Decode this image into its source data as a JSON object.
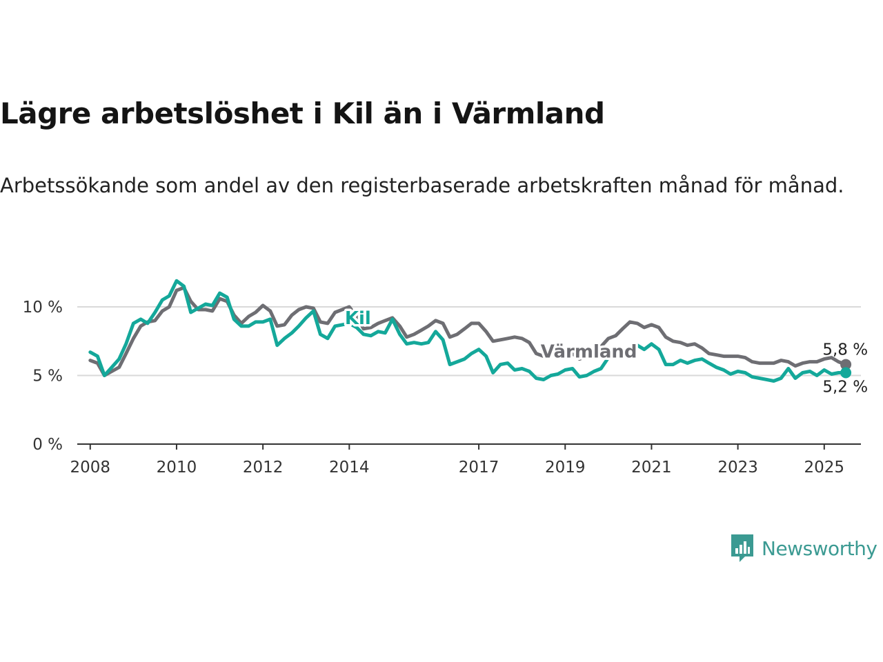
{
  "title": "Lägre arbetslöshet i Kil än i Värmland",
  "subtitle": "Arbetssökande som andel av den registerbaserade arbetskraften månad för månad.",
  "brand": "Newsworthy",
  "colors": {
    "kil": "#14a89a",
    "varmland": "#6e6e73",
    "grid": "#d9d9d9",
    "axis": "#333333",
    "brand": "#3b9a92"
  },
  "chart_data": {
    "type": "line",
    "title": "Lägre arbetslöshet i Kil än i Värmland",
    "subtitle": "Arbetssökande som andel av den registerbaserade arbetskraften månad för månad.",
    "xlabel": "",
    "ylabel": "",
    "x_range": [
      2007.7,
      2025.85
    ],
    "ylim": [
      0,
      10
    ],
    "y_ticks": [
      0,
      5,
      10
    ],
    "y_tick_labels": [
      "0 %",
      "5 %",
      "10 %"
    ],
    "x_ticks": [
      2008,
      2010,
      2012,
      2014,
      2017,
      2019,
      2021,
      2023,
      2025
    ],
    "x_tick_labels": [
      "2008",
      "2010",
      "2012",
      "2014",
      "2017",
      "2019",
      "2021",
      "2023",
      "2025"
    ],
    "grid": "horizontal",
    "series": [
      {
        "name": "Värmland",
        "end_label": "5,8 %",
        "points": [
          [
            2008.0,
            6.1
          ],
          [
            2008.17,
            5.9
          ],
          [
            2008.33,
            5.0
          ],
          [
            2008.5,
            5.3
          ],
          [
            2008.67,
            5.6
          ],
          [
            2008.83,
            6.6
          ],
          [
            2009.0,
            7.7
          ],
          [
            2009.17,
            8.6
          ],
          [
            2009.33,
            8.9
          ],
          [
            2009.5,
            9.0
          ],
          [
            2009.67,
            9.7
          ],
          [
            2009.83,
            10.0
          ],
          [
            2010.0,
            11.2
          ],
          [
            2010.17,
            11.4
          ],
          [
            2010.33,
            10.4
          ],
          [
            2010.5,
            9.8
          ],
          [
            2010.67,
            9.8
          ],
          [
            2010.83,
            9.7
          ],
          [
            2011.0,
            10.6
          ],
          [
            2011.17,
            10.4
          ],
          [
            2011.33,
            9.4
          ],
          [
            2011.5,
            8.8
          ],
          [
            2011.67,
            9.3
          ],
          [
            2011.83,
            9.6
          ],
          [
            2012.0,
            10.1
          ],
          [
            2012.17,
            9.7
          ],
          [
            2012.33,
            8.6
          ],
          [
            2012.5,
            8.7
          ],
          [
            2012.67,
            9.4
          ],
          [
            2012.83,
            9.8
          ],
          [
            2013.0,
            10.0
          ],
          [
            2013.17,
            9.9
          ],
          [
            2013.33,
            8.9
          ],
          [
            2013.5,
            8.8
          ],
          [
            2013.67,
            9.6
          ],
          [
            2014.0,
            10.0
          ],
          [
            2014.17,
            9.3
          ],
          [
            2014.33,
            8.4
          ],
          [
            2014.5,
            8.5
          ],
          [
            2014.67,
            8.8
          ],
          [
            2014.83,
            9.0
          ],
          [
            2015.0,
            9.2
          ],
          [
            2015.17,
            8.6
          ],
          [
            2015.33,
            7.8
          ],
          [
            2015.5,
            8.0
          ],
          [
            2015.67,
            8.3
          ],
          [
            2015.83,
            8.6
          ],
          [
            2016.0,
            9.0
          ],
          [
            2016.17,
            8.8
          ],
          [
            2016.33,
            7.8
          ],
          [
            2016.5,
            8.0
          ],
          [
            2016.67,
            8.4
          ],
          [
            2016.83,
            8.8
          ],
          [
            2017.0,
            8.8
          ],
          [
            2017.17,
            8.2
          ],
          [
            2017.33,
            7.5
          ],
          [
            2017.5,
            7.6
          ],
          [
            2017.67,
            7.7
          ],
          [
            2017.83,
            7.8
          ],
          [
            2018.0,
            7.7
          ],
          [
            2018.17,
            7.4
          ],
          [
            2018.33,
            6.6
          ],
          [
            2018.5,
            6.4
          ],
          [
            2018.67,
            6.5
          ],
          [
            2019.0,
            6.9
          ],
          [
            2019.17,
            6.6
          ],
          [
            2019.33,
            6.2
          ],
          [
            2019.5,
            6.4
          ],
          [
            2019.67,
            6.8
          ],
          [
            2019.83,
            7.1
          ],
          [
            2020.0,
            7.7
          ],
          [
            2020.17,
            7.9
          ],
          [
            2020.33,
            8.4
          ],
          [
            2020.5,
            8.9
          ],
          [
            2020.67,
            8.8
          ],
          [
            2020.83,
            8.5
          ],
          [
            2021.0,
            8.7
          ],
          [
            2021.17,
            8.5
          ],
          [
            2021.33,
            7.8
          ],
          [
            2021.5,
            7.5
          ],
          [
            2021.67,
            7.4
          ],
          [
            2021.83,
            7.2
          ],
          [
            2022.0,
            7.3
          ],
          [
            2022.17,
            7.0
          ],
          [
            2022.33,
            6.6
          ],
          [
            2022.5,
            6.5
          ],
          [
            2022.67,
            6.4
          ],
          [
            2022.83,
            6.4
          ],
          [
            2023.0,
            6.4
          ],
          [
            2023.17,
            6.3
          ],
          [
            2023.33,
            6.0
          ],
          [
            2023.5,
            5.9
          ],
          [
            2023.67,
            5.9
          ],
          [
            2023.83,
            5.9
          ],
          [
            2024.0,
            6.1
          ],
          [
            2024.17,
            6.0
          ],
          [
            2024.33,
            5.7
          ],
          [
            2024.5,
            5.9
          ],
          [
            2024.67,
            6.0
          ],
          [
            2024.83,
            6.0
          ],
          [
            2025.0,
            6.2
          ],
          [
            2025.17,
            6.3
          ],
          [
            2025.33,
            6.0
          ],
          [
            2025.5,
            5.8
          ]
        ]
      },
      {
        "name": "Kil",
        "end_label": "5,2 %",
        "points": [
          [
            2008.0,
            6.7
          ],
          [
            2008.17,
            6.4
          ],
          [
            2008.33,
            5.0
          ],
          [
            2008.5,
            5.6
          ],
          [
            2008.67,
            6.2
          ],
          [
            2008.83,
            7.3
          ],
          [
            2009.0,
            8.8
          ],
          [
            2009.17,
            9.1
          ],
          [
            2009.33,
            8.8
          ],
          [
            2009.5,
            9.6
          ],
          [
            2009.67,
            10.5
          ],
          [
            2009.83,
            10.8
          ],
          [
            2010.0,
            11.9
          ],
          [
            2010.17,
            11.5
          ],
          [
            2010.33,
            9.6
          ],
          [
            2010.5,
            9.9
          ],
          [
            2010.67,
            10.2
          ],
          [
            2010.83,
            10.1
          ],
          [
            2011.0,
            11.0
          ],
          [
            2011.17,
            10.7
          ],
          [
            2011.33,
            9.1
          ],
          [
            2011.5,
            8.6
          ],
          [
            2011.67,
            8.6
          ],
          [
            2011.83,
            8.9
          ],
          [
            2012.0,
            8.9
          ],
          [
            2012.17,
            9.1
          ],
          [
            2012.33,
            7.2
          ],
          [
            2012.5,
            7.7
          ],
          [
            2012.67,
            8.1
          ],
          [
            2012.83,
            8.6
          ],
          [
            2013.0,
            9.2
          ],
          [
            2013.17,
            9.7
          ],
          [
            2013.33,
            8.0
          ],
          [
            2013.5,
            7.7
          ],
          [
            2013.67,
            8.6
          ],
          [
            2014.0,
            8.8
          ],
          [
            2014.17,
            8.5
          ],
          [
            2014.33,
            8.0
          ],
          [
            2014.5,
            7.9
          ],
          [
            2014.67,
            8.2
          ],
          [
            2014.83,
            8.1
          ],
          [
            2015.0,
            9.1
          ],
          [
            2015.17,
            8.0
          ],
          [
            2015.33,
            7.3
          ],
          [
            2015.5,
            7.4
          ],
          [
            2015.67,
            7.3
          ],
          [
            2015.83,
            7.4
          ],
          [
            2016.0,
            8.2
          ],
          [
            2016.17,
            7.6
          ],
          [
            2016.33,
            5.8
          ],
          [
            2016.5,
            6.0
          ],
          [
            2016.67,
            6.2
          ],
          [
            2016.83,
            6.6
          ],
          [
            2017.0,
            6.9
          ],
          [
            2017.17,
            6.4
          ],
          [
            2017.33,
            5.2
          ],
          [
            2017.5,
            5.8
          ],
          [
            2017.67,
            5.9
          ],
          [
            2017.83,
            5.4
          ],
          [
            2018.0,
            5.5
          ],
          [
            2018.17,
            5.3
          ],
          [
            2018.33,
            4.8
          ],
          [
            2018.5,
            4.7
          ],
          [
            2018.67,
            5.0
          ],
          [
            2018.83,
            5.1
          ],
          [
            2019.0,
            5.4
          ],
          [
            2019.17,
            5.5
          ],
          [
            2019.33,
            4.9
          ],
          [
            2019.5,
            5.0
          ],
          [
            2019.67,
            5.3
          ],
          [
            2019.83,
            5.5
          ],
          [
            2020.0,
            6.3
          ],
          [
            2020.17,
            6.6
          ],
          [
            2020.33,
            6.8
          ],
          [
            2020.5,
            7.0
          ],
          [
            2020.67,
            7.2
          ],
          [
            2020.83,
            6.9
          ],
          [
            2021.0,
            7.3
          ],
          [
            2021.17,
            6.9
          ],
          [
            2021.33,
            5.8
          ],
          [
            2021.5,
            5.8
          ],
          [
            2021.67,
            6.1
          ],
          [
            2021.83,
            5.9
          ],
          [
            2022.0,
            6.1
          ],
          [
            2022.17,
            6.2
          ],
          [
            2022.33,
            5.9
          ],
          [
            2022.5,
            5.6
          ],
          [
            2022.67,
            5.4
          ],
          [
            2022.83,
            5.1
          ],
          [
            2023.0,
            5.3
          ],
          [
            2023.17,
            5.2
          ],
          [
            2023.33,
            4.9
          ],
          [
            2023.5,
            4.8
          ],
          [
            2023.67,
            4.7
          ],
          [
            2023.83,
            4.6
          ],
          [
            2024.0,
            4.8
          ],
          [
            2024.17,
            5.5
          ],
          [
            2024.33,
            4.8
          ],
          [
            2024.5,
            5.2
          ],
          [
            2024.67,
            5.3
          ],
          [
            2024.83,
            5.0
          ],
          [
            2025.0,
            5.4
          ],
          [
            2025.17,
            5.1
          ],
          [
            2025.33,
            5.2
          ],
          [
            2025.5,
            5.2
          ]
        ]
      }
    ]
  }
}
